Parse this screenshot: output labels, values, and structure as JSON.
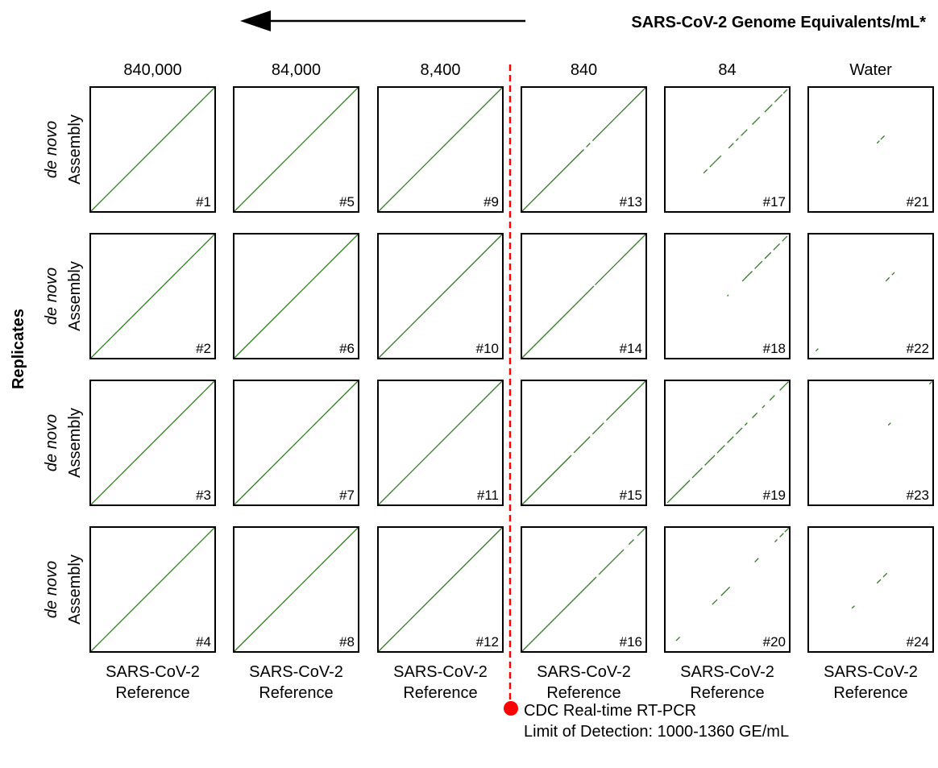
{
  "header": {
    "title": "SARS-CoV-2 Genome Equivalents/mL*"
  },
  "legend": {
    "marker_color": "#ff0000",
    "line1": "CDC Real-time RT-PCR",
    "line2": "Limit of Detection: 1000-1360 GE/mL"
  },
  "labels": {
    "row_italic": "de novo",
    "row_normal": "Assembly",
    "replicates": "Replicates",
    "xlabel_line1": "SARS-CoV-2",
    "xlabel_line2": "Reference"
  },
  "colors": {
    "alignment": "#2e7d1e",
    "frame": "#000000",
    "lod_line": "#ff0000"
  },
  "chart_data": {
    "type": "scatter",
    "description_of_encoding": "Dot plots: each panel plots de novo assembly position (y) against SARS-CoV-2 reference position (x), both axes as fraction of genome length [0,1]. segments = aligned intervals lying on the diagonal.",
    "xlim": [
      0,
      1
    ],
    "ylim": [
      0,
      1
    ],
    "columns": [
      "840,000",
      "84,000",
      "8,400",
      "840",
      "84",
      "Water"
    ],
    "lod_between_columns": [
      "8,400",
      "840"
    ],
    "panels": [
      {
        "id": "#1",
        "column": "840,000",
        "replicate": 1,
        "segments": [
          [
            0,
            1
          ]
        ]
      },
      {
        "id": "#2",
        "column": "840,000",
        "replicate": 2,
        "segments": [
          [
            0,
            1
          ]
        ]
      },
      {
        "id": "#3",
        "column": "840,000",
        "replicate": 3,
        "segments": [
          [
            0,
            1
          ]
        ]
      },
      {
        "id": "#4",
        "column": "840,000",
        "replicate": 4,
        "segments": [
          [
            0,
            1
          ]
        ]
      },
      {
        "id": "#5",
        "column": "84,000",
        "replicate": 1,
        "segments": [
          [
            0,
            1
          ]
        ]
      },
      {
        "id": "#6",
        "column": "84,000",
        "replicate": 2,
        "segments": [
          [
            0,
            1
          ]
        ]
      },
      {
        "id": "#7",
        "column": "84,000",
        "replicate": 3,
        "segments": [
          [
            0,
            1
          ]
        ]
      },
      {
        "id": "#8",
        "column": "84,000",
        "replicate": 4,
        "segments": [
          [
            0,
            1
          ]
        ]
      },
      {
        "id": "#9",
        "column": "8,400",
        "replicate": 1,
        "segments": [
          [
            0,
            1
          ]
        ]
      },
      {
        "id": "#10",
        "column": "8,400",
        "replicate": 2,
        "segments": [
          [
            0,
            1
          ]
        ]
      },
      {
        "id": "#11",
        "column": "8,400",
        "replicate": 3,
        "segments": [
          [
            0,
            1
          ]
        ]
      },
      {
        "id": "#12",
        "column": "8,400",
        "replicate": 4,
        "segments": [
          [
            0,
            1
          ]
        ]
      },
      {
        "id": "#13",
        "column": "840",
        "replicate": 1,
        "segments": [
          [
            0,
            0.5
          ],
          [
            0.52,
            0.55
          ],
          [
            0.57,
            1
          ]
        ]
      },
      {
        "id": "#14",
        "column": "840",
        "replicate": 2,
        "segments": [
          [
            0,
            0.58
          ],
          [
            0.59,
            1
          ]
        ]
      },
      {
        "id": "#15",
        "column": "840",
        "replicate": 3,
        "segments": [
          [
            0,
            0.4
          ],
          [
            0.42,
            0.55
          ],
          [
            0.57,
            0.66
          ],
          [
            0.68,
            1
          ]
        ]
      },
      {
        "id": "#16",
        "column": "840",
        "replicate": 4,
        "segments": [
          [
            0,
            0.6
          ],
          [
            0.62,
            0.82
          ],
          [
            0.86,
            0.9
          ],
          [
            0.93,
            1
          ]
        ]
      },
      {
        "id": "#17",
        "column": "84",
        "replicate": 1,
        "segments": [
          [
            0.31,
            0.34
          ],
          [
            0.36,
            0.45
          ],
          [
            0.51,
            0.55
          ],
          [
            0.57,
            0.59
          ],
          [
            0.61,
            0.66
          ],
          [
            0.7,
            0.76
          ],
          [
            0.8,
            0.86
          ],
          [
            0.88,
            0.94
          ],
          [
            0.95,
            0.98
          ]
        ]
      },
      {
        "id": "#18",
        "column": "84",
        "replicate": 2,
        "segments": [
          [
            0.5,
            0.51
          ],
          [
            0.62,
            0.7
          ],
          [
            0.72,
            0.78
          ],
          [
            0.8,
            0.85
          ],
          [
            0.87,
            0.92
          ],
          [
            0.94,
            0.98
          ]
        ]
      },
      {
        "id": "#19",
        "column": "84",
        "replicate": 3,
        "segments": [
          [
            0.02,
            0.2
          ],
          [
            0.22,
            0.3
          ],
          [
            0.32,
            0.4
          ],
          [
            0.42,
            0.48
          ],
          [
            0.5,
            0.55
          ],
          [
            0.57,
            0.62
          ],
          [
            0.64,
            0.66
          ],
          [
            0.7,
            0.74
          ],
          [
            0.78,
            0.8
          ],
          [
            0.84,
            0.88
          ],
          [
            0.92,
            0.99
          ]
        ]
      },
      {
        "id": "#20",
        "column": "84",
        "replicate": 4,
        "segments": [
          [
            0.09,
            0.12
          ],
          [
            0.38,
            0.42
          ],
          [
            0.45,
            0.52
          ],
          [
            0.72,
            0.75
          ],
          [
            0.88,
            0.9
          ],
          [
            0.92,
            0.95
          ],
          [
            0.96,
            1.0
          ]
        ]
      },
      {
        "id": "#21",
        "column": "Water",
        "replicate": 1,
        "segments": [
          [
            0.55,
            0.57
          ],
          [
            0.58,
            0.61
          ]
        ]
      },
      {
        "id": "#22",
        "column": "Water",
        "replicate": 2,
        "segments": [
          [
            0.06,
            0.08
          ],
          [
            0.62,
            0.65
          ],
          [
            0.67,
            0.69
          ]
        ]
      },
      {
        "id": "#23",
        "column": "Water",
        "replicate": 3,
        "segments": [
          [
            0.64,
            0.66
          ],
          [
            0.97,
            0.99
          ]
        ]
      },
      {
        "id": "#24",
        "column": "Water",
        "replicate": 4,
        "segments": [
          [
            0.35,
            0.37
          ],
          [
            0.55,
            0.58
          ],
          [
            0.6,
            0.63
          ]
        ]
      }
    ]
  }
}
